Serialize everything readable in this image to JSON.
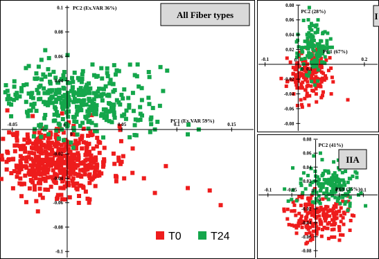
{
  "colors": {
    "T0": "#ee1c1c",
    "T24": "#14a64b"
  },
  "legend": [
    {
      "label": "T0",
      "color": "#ee1c1c"
    },
    {
      "label": "T24",
      "color": "#14a64b"
    }
  ],
  "chart_data": [
    {
      "type": "scatter",
      "title": "All Fiber types",
      "xlabel": "PC1 (Ex.VAR 59%)",
      "ylabel": "PC2 (Ex.VAR 36%)",
      "xlim": [
        -0.06,
        0.17
      ],
      "ylim": [
        -0.105,
        0.105
      ],
      "x_ticks": [
        -0.05,
        0.05,
        0.1,
        0.15
      ],
      "x_tick_labels": [
        "-0.05",
        "0.05",
        "0.1",
        "0.15"
      ],
      "y_ticks": [
        0.1,
        0.08,
        0.06,
        0.04,
        -0.02,
        -0.04,
        -0.06,
        -0.08,
        -0.1
      ],
      "y_tick_labels": [
        "0.1",
        "0.08",
        "0.06",
        "0.04",
        "-0.02",
        "-0.04",
        "-0.06",
        "-0.08",
        "-0.1"
      ],
      "zero_labels": [
        "0",
        "0"
      ],
      "series": [
        {
          "name": "T0",
          "color": "#ee1c1c",
          "center": [
            -0.01,
            -0.025
          ],
          "spread": [
            0.025,
            0.014
          ],
          "n": 520,
          "extra_points": [
            [
              0.14,
              -0.062
            ],
            [
              0.11,
              -0.048
            ],
            [
              0.08,
              -0.052
            ],
            [
              0.02,
              -0.06
            ],
            [
              0.09,
              -0.03
            ],
            [
              0.07,
              -0.04
            ],
            [
              0.13,
              -0.05
            ]
          ]
        },
        {
          "name": "T24",
          "color": "#14a64b",
          "center": [
            0.01,
            0.025
          ],
          "spread": [
            0.035,
            0.014
          ],
          "n": 360,
          "extra_points": [
            [
              0.12,
              0.0
            ],
            [
              0.11,
              -0.004
            ],
            [
              0.08,
              0.0
            ],
            [
              -0.02,
              0.065
            ],
            [
              -0.035,
              0.052
            ],
            [
              0.075,
              0.043
            ],
            [
              0.06,
              0.03
            ]
          ]
        }
      ]
    },
    {
      "type": "scatter",
      "title": "I",
      "xlabel": "PC1 (67%)",
      "ylabel": "PC2 (28%)",
      "xlim": [
        -0.12,
        0.24
      ],
      "ylim": [
        -0.09,
        0.085
      ],
      "x_ticks": [
        -0.1,
        0.2
      ],
      "x_tick_labels": [
        "-0.1",
        "0.2"
      ],
      "y_ticks": [
        0.08,
        0.06,
        0.04,
        0.02,
        -0.02,
        -0.04,
        -0.06,
        -0.08
      ],
      "y_tick_labels": [
        "0.08",
        "0.06",
        "0.04",
        "0.02",
        "-0.02",
        "-0.04",
        "-0.06",
        "-0.08"
      ],
      "zero_labels": [
        "0",
        "0",
        "0.1"
      ],
      "series": [
        {
          "name": "T0",
          "color": "#ee1c1c",
          "center": [
            0.03,
            -0.015
          ],
          "spread": [
            0.03,
            0.016
          ],
          "n": 170,
          "extra_points": [
            [
              0.15,
              -0.048
            ],
            [
              0.1,
              -0.04
            ],
            [
              0.07,
              -0.045
            ]
          ]
        },
        {
          "name": "T24",
          "color": "#14a64b",
          "center": [
            0.05,
            0.022
          ],
          "spread": [
            0.025,
            0.018
          ],
          "n": 130,
          "extra_points": [
            [
              0.06,
              0.06
            ],
            [
              0.04,
              0.055
            ]
          ]
        }
      ]
    },
    {
      "type": "scatter",
      "title": "IIA",
      "xlabel": "PC1 (55%)",
      "ylabel": "PC2 (41%)",
      "xlim": [
        -0.12,
        0.13
      ],
      "ylim": [
        -0.09,
        0.085
      ],
      "x_ticks": [
        -0.1,
        -0.05,
        0.05,
        0.1
      ],
      "x_tick_labels": [
        "-0.1",
        "-0.05",
        "0.05",
        "0.1"
      ],
      "y_ticks": [
        0.08,
        0.06,
        0.04,
        0.02,
        -0.02,
        -0.04,
        -0.06,
        -0.08
      ],
      "y_tick_labels": [
        "0.08",
        "0.06",
        "0.04",
        "0.02",
        "-0.02",
        "-0.04",
        "-0.06",
        "-0.08"
      ],
      "zero_labels": [
        "0",
        "0"
      ],
      "series": [
        {
          "name": "T0",
          "color": "#ee1c1c",
          "center": [
            0.005,
            -0.03
          ],
          "spread": [
            0.03,
            0.016
          ],
          "n": 190,
          "extra_points": [
            [
              0.08,
              -0.03
            ],
            [
              -0.04,
              -0.055
            ],
            [
              0.05,
              -0.065
            ],
            [
              -0.02,
              -0.07
            ]
          ]
        },
        {
          "name": "T24",
          "color": "#14a64b",
          "center": [
            0.03,
            0.015
          ],
          "spread": [
            0.03,
            0.014
          ],
          "n": 150,
          "extra_points": [
            [
              0.01,
              0.06
            ],
            [
              0.07,
              0.005
            ],
            [
              0.09,
              0.0
            ]
          ]
        }
      ]
    }
  ]
}
